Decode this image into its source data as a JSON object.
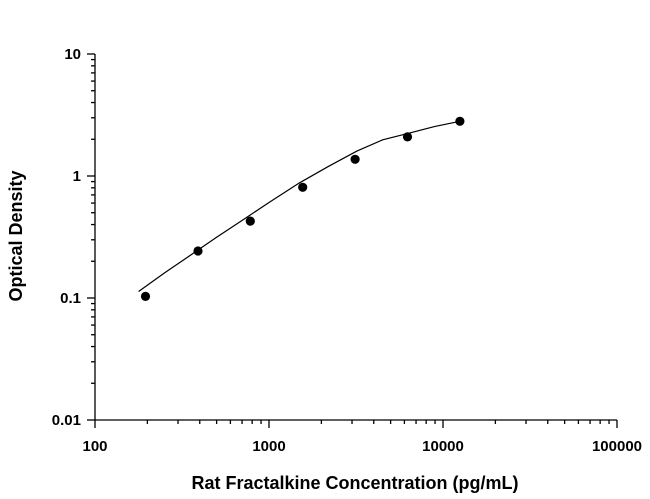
{
  "chart_data": {
    "type": "scatter",
    "title": "",
    "xlabel": "Rat Fractalkine Concentration (pg/mL)",
    "ylabel": "Optical Density",
    "xscale": "log",
    "yscale": "log",
    "xlim": [
      100,
      100000
    ],
    "ylim": [
      0.01,
      10
    ],
    "xticks": [
      "100",
      "1000",
      "10000",
      "100000"
    ],
    "yticks": [
      "0.01",
      "0.1",
      "1",
      "10"
    ],
    "grid": false,
    "series": [
      {
        "x": [
          195,
          391,
          781,
          1563,
          3125,
          6250,
          12500
        ],
        "y": [
          0.103,
          0.243,
          0.427,
          0.808,
          1.37,
          2.09,
          2.81
        ]
      }
    ],
    "fit_curve": {
      "x": [
        178,
        250,
        350,
        500,
        700,
        1000,
        1500,
        2200,
        3200,
        4500,
        6500,
        9000,
        12500
      ],
      "y": [
        0.113,
        0.16,
        0.222,
        0.315,
        0.432,
        0.606,
        0.879,
        1.2,
        1.6,
        1.98,
        2.26,
        2.55,
        2.81
      ]
    },
    "colors": {
      "marker": "#000000",
      "line": "#000000",
      "axis": "#000000"
    }
  }
}
